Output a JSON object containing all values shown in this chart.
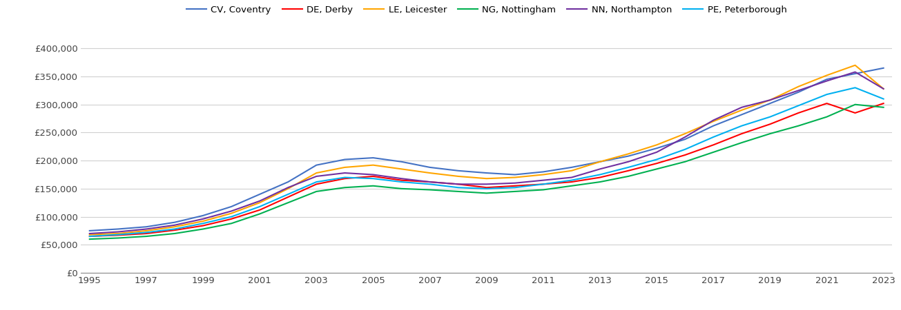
{
  "series": {
    "CV, Coventry": {
      "color": "#4472C4",
      "values": [
        75000,
        78000,
        82000,
        90000,
        102000,
        118000,
        140000,
        162000,
        192000,
        202000,
        205000,
        198000,
        188000,
        182000,
        178000,
        175000,
        180000,
        188000,
        198000,
        208000,
        222000,
        238000,
        262000,
        282000,
        302000,
        322000,
        345000,
        355000,
        365000
      ]
    },
    "DE, Derby": {
      "color": "#FF0000",
      "values": [
        65000,
        67000,
        70000,
        76000,
        84000,
        96000,
        112000,
        135000,
        158000,
        168000,
        172000,
        165000,
        162000,
        158000,
        152000,
        155000,
        158000,
        162000,
        170000,
        182000,
        195000,
        210000,
        228000,
        248000,
        265000,
        285000,
        302000,
        285000,
        302000
      ]
    },
    "LE, Leicester": {
      "color": "#FFA500",
      "values": [
        68000,
        70000,
        75000,
        82000,
        92000,
        106000,
        125000,
        150000,
        178000,
        188000,
        192000,
        185000,
        178000,
        172000,
        168000,
        170000,
        175000,
        182000,
        198000,
        212000,
        228000,
        248000,
        270000,
        290000,
        308000,
        332000,
        352000,
        370000,
        328000
      ]
    },
    "NG, Nottingham": {
      "color": "#00B050",
      "values": [
        60000,
        62000,
        65000,
        70000,
        78000,
        88000,
        105000,
        125000,
        145000,
        152000,
        155000,
        150000,
        148000,
        145000,
        142000,
        145000,
        148000,
        155000,
        162000,
        172000,
        185000,
        198000,
        215000,
        232000,
        248000,
        262000,
        278000,
        300000,
        295000
      ]
    },
    "NN, Northampton": {
      "color": "#7030A0",
      "values": [
        70000,
        73000,
        78000,
        85000,
        96000,
        110000,
        128000,
        152000,
        172000,
        178000,
        175000,
        168000,
        162000,
        158000,
        158000,
        160000,
        165000,
        170000,
        185000,
        198000,
        215000,
        242000,
        272000,
        295000,
        308000,
        325000,
        342000,
        358000,
        328000
      ]
    },
    "PE, Peterborough": {
      "color": "#00B0F0",
      "values": [
        65000,
        68000,
        72000,
        78000,
        88000,
        100000,
        118000,
        140000,
        162000,
        170000,
        168000,
        162000,
        158000,
        152000,
        150000,
        152000,
        158000,
        165000,
        175000,
        188000,
        202000,
        220000,
        242000,
        262000,
        278000,
        298000,
        318000,
        330000,
        310000
      ]
    }
  },
  "years": [
    1995,
    1996,
    1997,
    1998,
    1999,
    2000,
    2001,
    2002,
    2003,
    2004,
    2005,
    2006,
    2007,
    2008,
    2009,
    2010,
    2011,
    2012,
    2013,
    2014,
    2015,
    2016,
    2017,
    2018,
    2019,
    2020,
    2021,
    2022,
    2023
  ],
  "ylim": [
    0,
    420000
  ],
  "yticks": [
    0,
    50000,
    100000,
    150000,
    200000,
    250000,
    300000,
    350000,
    400000
  ],
  "xticks": [
    1995,
    1997,
    1999,
    2001,
    2003,
    2005,
    2007,
    2009,
    2011,
    2013,
    2015,
    2017,
    2019,
    2021,
    2023
  ],
  "background_color": "#ffffff",
  "grid_color": "#d0d0d0"
}
